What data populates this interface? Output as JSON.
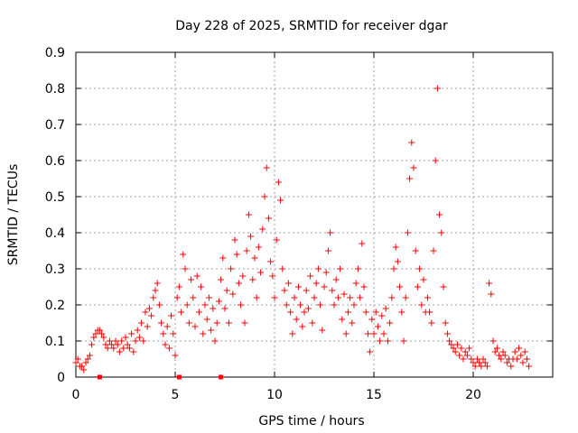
{
  "chart_data": {
    "type": "scatter",
    "title": "Day 228 of 2025, SRMTID for receiver dgar",
    "xlabel": "GPS time / hours",
    "ylabel": "SRMTID / TECUs",
    "xlim": [
      0,
      24
    ],
    "ylim": [
      0,
      0.9
    ],
    "x_ticks": [
      0,
      5,
      10,
      15,
      20
    ],
    "x_tick_labels": [
      "0",
      "5",
      "10",
      "15",
      "20"
    ],
    "y_ticks": [
      0,
      0.1,
      0.2,
      0.3,
      0.4,
      0.5,
      0.6,
      0.7,
      0.8,
      0.9
    ],
    "y_tick_labels": [
      "0",
      "0.1",
      "0.2",
      "0.3",
      "0.4",
      "0.5",
      "0.6",
      "0.7",
      "0.8",
      "0.9"
    ],
    "grid": true,
    "marker": "+",
    "color": "#ff0000",
    "series": [
      {
        "name": "SRMTID",
        "points": [
          [
            0.0,
            0.04
          ],
          [
            0.1,
            0.05
          ],
          [
            0.2,
            0.03
          ],
          [
            0.3,
            0.03
          ],
          [
            0.4,
            0.02
          ],
          [
            0.5,
            0.04
          ],
          [
            0.6,
            0.05
          ],
          [
            0.7,
            0.06
          ],
          [
            0.8,
            0.09
          ],
          [
            0.9,
            0.11
          ],
          [
            1.0,
            0.12
          ],
          [
            1.1,
            0.13
          ],
          [
            1.2,
            0.13
          ],
          [
            1.3,
            0.12
          ],
          [
            1.4,
            0.11
          ],
          [
            1.5,
            0.09
          ],
          [
            1.6,
            0.08
          ],
          [
            1.7,
            0.1
          ],
          [
            1.8,
            0.09
          ],
          [
            1.9,
            0.08
          ],
          [
            2.0,
            0.1
          ],
          [
            2.1,
            0.09
          ],
          [
            2.2,
            0.07
          ],
          [
            2.3,
            0.1
          ],
          [
            2.4,
            0.08
          ],
          [
            2.5,
            0.11
          ],
          [
            2.6,
            0.09
          ],
          [
            2.7,
            0.08
          ],
          [
            2.8,
            0.12
          ],
          [
            2.9,
            0.07
          ],
          [
            3.0,
            0.1
          ],
          [
            3.1,
            0.13
          ],
          [
            3.2,
            0.11
          ],
          [
            3.3,
            0.15
          ],
          [
            3.4,
            0.1
          ],
          [
            3.5,
            0.18
          ],
          [
            3.6,
            0.14
          ],
          [
            3.7,
            0.19
          ],
          [
            3.8,
            0.17
          ],
          [
            3.9,
            0.22
          ],
          [
            4.0,
            0.24
          ],
          [
            4.1,
            0.26
          ],
          [
            4.2,
            0.2
          ],
          [
            4.3,
            0.15
          ],
          [
            4.4,
            0.12
          ],
          [
            4.5,
            0.09
          ],
          [
            4.6,
            0.14
          ],
          [
            4.7,
            0.08
          ],
          [
            4.8,
            0.17
          ],
          [
            4.9,
            0.12
          ],
          [
            5.0,
            0.06
          ],
          [
            5.1,
            0.22
          ],
          [
            5.2,
            0.25
          ],
          [
            5.3,
            0.18
          ],
          [
            5.4,
            0.34
          ],
          [
            5.5,
            0.3
          ],
          [
            5.6,
            0.2
          ],
          [
            5.7,
            0.15
          ],
          [
            5.8,
            0.27
          ],
          [
            5.9,
            0.22
          ],
          [
            6.0,
            0.14
          ],
          [
            6.1,
            0.28
          ],
          [
            6.2,
            0.18
          ],
          [
            6.3,
            0.25
          ],
          [
            6.4,
            0.12
          ],
          [
            6.5,
            0.2
          ],
          [
            6.6,
            0.16
          ],
          [
            6.7,
            0.22
          ],
          [
            6.8,
            0.13
          ],
          [
            6.9,
            0.19
          ],
          [
            7.0,
            0.1
          ],
          [
            7.1,
            0.15
          ],
          [
            7.2,
            0.21
          ],
          [
            7.3,
            0.27
          ],
          [
            7.4,
            0.33
          ],
          [
            7.5,
            0.19
          ],
          [
            7.6,
            0.24
          ],
          [
            7.7,
            0.15
          ],
          [
            7.8,
            0.3
          ],
          [
            7.9,
            0.23
          ],
          [
            8.0,
            0.38
          ],
          [
            8.1,
            0.34
          ],
          [
            8.2,
            0.26
          ],
          [
            8.3,
            0.2
          ],
          [
            8.4,
            0.28
          ],
          [
            8.5,
            0.15
          ],
          [
            8.6,
            0.35
          ],
          [
            8.7,
            0.45
          ],
          [
            8.8,
            0.39
          ],
          [
            8.9,
            0.27
          ],
          [
            9.0,
            0.33
          ],
          [
            9.1,
            0.22
          ],
          [
            9.2,
            0.36
          ],
          [
            9.3,
            0.29
          ],
          [
            9.4,
            0.41
          ],
          [
            9.5,
            0.5
          ],
          [
            9.6,
            0.58
          ],
          [
            9.7,
            0.44
          ],
          [
            9.8,
            0.32
          ],
          [
            9.9,
            0.28
          ],
          [
            10.0,
            0.22
          ],
          [
            10.1,
            0.38
          ],
          [
            10.2,
            0.54
          ],
          [
            10.3,
            0.49
          ],
          [
            10.4,
            0.3
          ],
          [
            10.5,
            0.24
          ],
          [
            10.6,
            0.2
          ],
          [
            10.7,
            0.26
          ],
          [
            10.8,
            0.18
          ],
          [
            10.9,
            0.12
          ],
          [
            11.0,
            0.22
          ],
          [
            11.1,
            0.16
          ],
          [
            11.2,
            0.25
          ],
          [
            11.3,
            0.2
          ],
          [
            11.4,
            0.14
          ],
          [
            11.5,
            0.18
          ],
          [
            11.6,
            0.24
          ],
          [
            11.7,
            0.19
          ],
          [
            11.8,
            0.28
          ],
          [
            11.9,
            0.15
          ],
          [
            12.0,
            0.22
          ],
          [
            12.1,
            0.26
          ],
          [
            12.2,
            0.3
          ],
          [
            12.3,
            0.2
          ],
          [
            12.4,
            0.13
          ],
          [
            12.5,
            0.25
          ],
          [
            12.6,
            0.29
          ],
          [
            12.7,
            0.35
          ],
          [
            12.8,
            0.4
          ],
          [
            12.9,
            0.24
          ],
          [
            13.0,
            0.2
          ],
          [
            13.1,
            0.27
          ],
          [
            13.2,
            0.22
          ],
          [
            13.3,
            0.3
          ],
          [
            13.4,
            0.16
          ],
          [
            13.5,
            0.23
          ],
          [
            13.6,
            0.12
          ],
          [
            13.7,
            0.18
          ],
          [
            13.8,
            0.22
          ],
          [
            13.9,
            0.15
          ],
          [
            14.0,
            0.2
          ],
          [
            14.1,
            0.26
          ],
          [
            14.2,
            0.3
          ],
          [
            14.3,
            0.22
          ],
          [
            14.4,
            0.37
          ],
          [
            14.5,
            0.25
          ],
          [
            14.6,
            0.18
          ],
          [
            14.7,
            0.12
          ],
          [
            14.8,
            0.07
          ],
          [
            14.9,
            0.16
          ],
          [
            15.0,
            0.12
          ],
          [
            15.1,
            0.18
          ],
          [
            15.2,
            0.14
          ],
          [
            15.3,
            0.1
          ],
          [
            15.4,
            0.17
          ],
          [
            15.5,
            0.12
          ],
          [
            15.6,
            0.19
          ],
          [
            15.7,
            0.1
          ],
          [
            15.8,
            0.15
          ],
          [
            15.9,
            0.22
          ],
          [
            16.0,
            0.3
          ],
          [
            16.1,
            0.36
          ],
          [
            16.2,
            0.32
          ],
          [
            16.3,
            0.25
          ],
          [
            16.4,
            0.18
          ],
          [
            16.5,
            0.1
          ],
          [
            16.6,
            0.22
          ],
          [
            16.7,
            0.4
          ],
          [
            16.8,
            0.55
          ],
          [
            16.9,
            0.65
          ],
          [
            17.0,
            0.58
          ],
          [
            17.1,
            0.35
          ],
          [
            17.2,
            0.25
          ],
          [
            17.3,
            0.3
          ],
          [
            17.4,
            0.2
          ],
          [
            17.5,
            0.27
          ],
          [
            17.6,
            0.18
          ],
          [
            17.7,
            0.22
          ],
          [
            17.8,
            0.18
          ],
          [
            17.9,
            0.15
          ],
          [
            18.0,
            0.35
          ],
          [
            18.1,
            0.6
          ],
          [
            18.2,
            0.8
          ],
          [
            18.3,
            0.45
          ],
          [
            18.4,
            0.4
          ],
          [
            18.5,
            0.25
          ],
          [
            18.6,
            0.15
          ],
          [
            18.7,
            0.12
          ],
          [
            18.8,
            0.1
          ],
          [
            18.9,
            0.09
          ],
          [
            19.0,
            0.08
          ],
          [
            19.1,
            0.07
          ],
          [
            19.2,
            0.09
          ],
          [
            19.3,
            0.06
          ],
          [
            19.4,
            0.08
          ],
          [
            19.5,
            0.05
          ],
          [
            19.6,
            0.07
          ],
          [
            19.7,
            0.06
          ],
          [
            19.8,
            0.08
          ],
          [
            19.9,
            0.05
          ],
          [
            20.0,
            0.04
          ],
          [
            20.1,
            0.03
          ],
          [
            20.2,
            0.05
          ],
          [
            20.3,
            0.04
          ],
          [
            20.4,
            0.03
          ],
          [
            20.5,
            0.05
          ],
          [
            20.6,
            0.04
          ],
          [
            20.7,
            0.03
          ],
          [
            20.8,
            0.26
          ],
          [
            20.9,
            0.23
          ],
          [
            21.0,
            0.1
          ],
          [
            21.1,
            0.07
          ],
          [
            21.2,
            0.08
          ],
          [
            21.3,
            0.06
          ],
          [
            21.4,
            0.05
          ],
          [
            21.5,
            0.07
          ],
          [
            21.6,
            0.06
          ],
          [
            21.7,
            0.04
          ],
          [
            21.8,
            0.05
          ],
          [
            21.9,
            0.03
          ],
          [
            22.0,
            0.05
          ],
          [
            22.1,
            0.07
          ],
          [
            22.2,
            0.05
          ],
          [
            22.3,
            0.08
          ],
          [
            22.4,
            0.06
          ],
          [
            22.5,
            0.04
          ],
          [
            22.6,
            0.07
          ],
          [
            22.7,
            0.05
          ],
          [
            22.8,
            0.03
          ]
        ]
      }
    ],
    "axis_markers_x": [
      1.2,
      5.2,
      7.3
    ]
  }
}
